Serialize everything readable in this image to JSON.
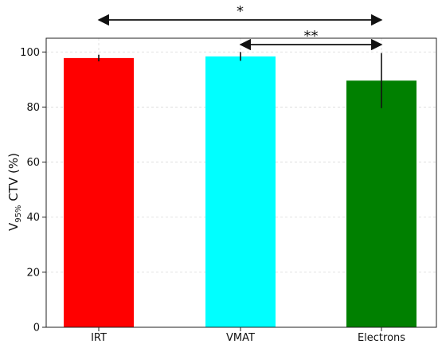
{
  "chart_data": {
    "type": "bar",
    "categories": [
      "IRT",
      "VMAT",
      "Electrons"
    ],
    "values": [
      97.8,
      98.4,
      89.6
    ],
    "errors": [
      1.2,
      1.6,
      10.0
    ],
    "colors": [
      "#ff0000",
      "#00ffff",
      "#008000"
    ],
    "ylabel": {
      "main": "V",
      "sub": "95%",
      "rest": " CTV (%)"
    },
    "ylim": [
      0,
      105
    ],
    "yticks": [
      0,
      20,
      40,
      60,
      80,
      100
    ],
    "grid": true,
    "significance": [
      {
        "from": 0,
        "to": 2,
        "label": "*"
      },
      {
        "from": 1,
        "to": 2,
        "label": "**"
      }
    ]
  }
}
